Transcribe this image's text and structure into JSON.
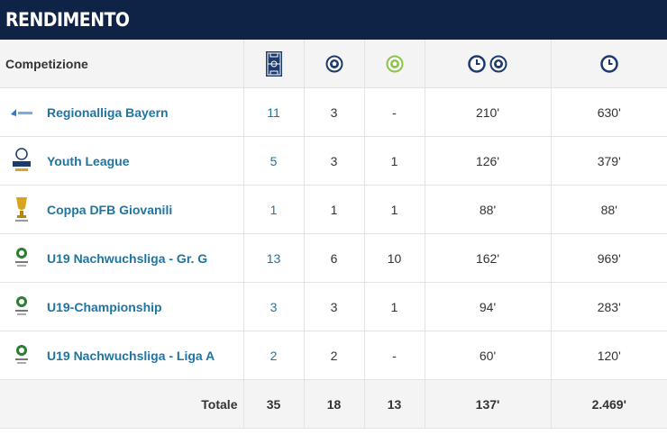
{
  "header": {
    "title": "RENDIMENTO"
  },
  "columns": {
    "competition": "Competizione",
    "icons": [
      "pitch-icon",
      "ball-icon",
      "ball-green-icon",
      "clock-ball-icon",
      "clock-icon"
    ]
  },
  "rows": [
    {
      "competition": "Regionalliga Bayern",
      "logo": "regionalliga-logo",
      "appearances": "11",
      "goals": "3",
      "assists": "-",
      "minutes_per_goal": "210'",
      "minutes": "630'"
    },
    {
      "competition": "Youth League",
      "logo": "youth-league-logo",
      "appearances": "5",
      "goals": "3",
      "assists": "1",
      "minutes_per_goal": "126'",
      "minutes": "379'"
    },
    {
      "competition": "Coppa DFB Giovanili",
      "logo": "dfb-cup-logo",
      "appearances": "1",
      "goals": "1",
      "assists": "1",
      "minutes_per_goal": "88'",
      "minutes": "88'"
    },
    {
      "competition": "U19 Nachwuchsliga - Gr. G",
      "logo": "nachwuchsliga-logo",
      "appearances": "13",
      "goals": "6",
      "assists": "10",
      "minutes_per_goal": "162'",
      "minutes": "969'"
    },
    {
      "competition": "U19-Championship",
      "logo": "nachwuchsliga-logo",
      "appearances": "3",
      "goals": "3",
      "assists": "1",
      "minutes_per_goal": "94'",
      "minutes": "283'"
    },
    {
      "competition": "U19 Nachwuchsliga - Liga A",
      "logo": "nachwuchsliga-logo",
      "appearances": "2",
      "goals": "2",
      "assists": "-",
      "minutes_per_goal": "60'",
      "minutes": "120'"
    }
  ],
  "totals": {
    "label": "Totale",
    "appearances": "35",
    "goals": "18",
    "assists": "13",
    "minutes_per_goal": "137'",
    "minutes": "2.469'"
  },
  "colors": {
    "header_bg": "#0f2347",
    "link": "#1d75a3",
    "icon_navy": "#1c3a6b",
    "icon_green": "#8bc34a"
  }
}
